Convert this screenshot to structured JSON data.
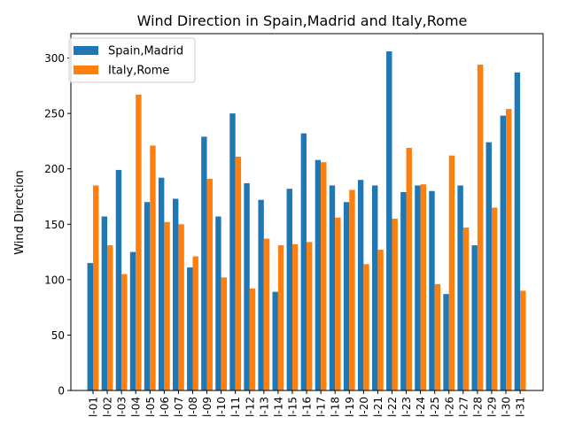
{
  "chart_data": {
    "type": "bar",
    "title": "Wind Direction in Spain,Madrid and Italy,Rome",
    "xlabel": "",
    "ylabel": "Wind Direction",
    "ylim": [
      0,
      322
    ],
    "yticks": [
      0,
      50,
      100,
      150,
      200,
      250,
      300
    ],
    "grid": false,
    "legend_position": "top-left",
    "categories": [
      "l-01",
      "l-02",
      "l-03",
      "l-04",
      "l-05",
      "l-06",
      "l-07",
      "l-08",
      "l-09",
      "l-10",
      "l-11",
      "l-12",
      "l-13",
      "l-14",
      "l-15",
      "l-16",
      "l-17",
      "l-18",
      "l-19",
      "l-20",
      "l-21",
      "l-22",
      "l-23",
      "l-24",
      "l-25",
      "l-26",
      "l-27",
      "l-28",
      "l-29",
      "l-30",
      "l-31"
    ],
    "series": [
      {
        "name": "Spain,Madrid",
        "color": "#1f77b4",
        "values": [
          115,
          157,
          199,
          125,
          170,
          192,
          173,
          111,
          229,
          157,
          250,
          187,
          172,
          89,
          182,
          232,
          208,
          185,
          170,
          190,
          185,
          306,
          179,
          185,
          180,
          87,
          185,
          131,
          224,
          248,
          287
        ]
      },
      {
        "name": "Italy,Rome",
        "color": "#ff7f0e",
        "values": [
          185,
          131,
          105,
          267,
          221,
          152,
          150,
          121,
          191,
          102,
          211,
          92,
          137,
          131,
          132,
          134,
          206,
          156,
          181,
          114,
          127,
          155,
          219,
          186,
          96,
          212,
          147,
          294,
          165,
          254,
          90
        ]
      }
    ]
  }
}
